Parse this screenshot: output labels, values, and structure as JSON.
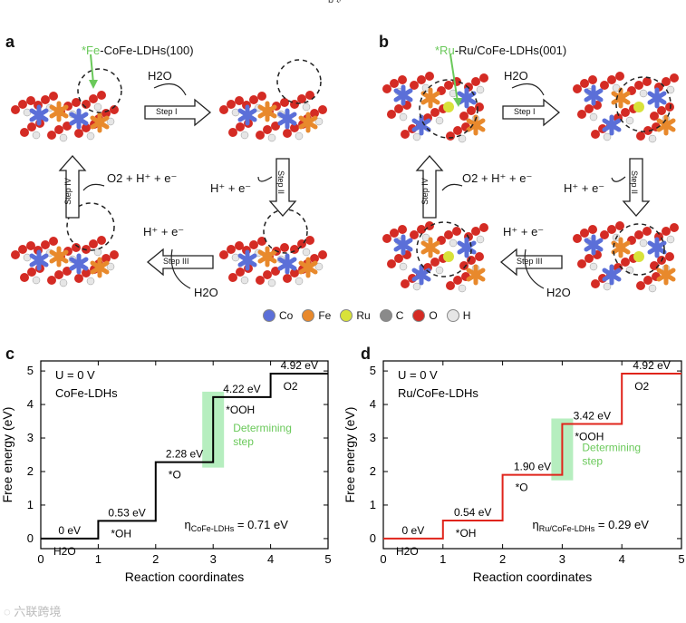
{
  "header_mark": "ɓ 𝔡",
  "watermark": "六联跨境",
  "colors": {
    "co": "#5b6fd8",
    "fe": "#e8892c",
    "ru": "#d8e23a",
    "c": "#8a8a8a",
    "o": "#d42b24",
    "h": "#e6e6e6",
    "highlight": "#b6eebf",
    "determining_text": "#6ac95a",
    "series_c": "#000000",
    "series_d": "#e0241b"
  },
  "panel_a": {
    "letter": "a",
    "label_prefix": "*Fe",
    "label_rest": "-CoFe-LDHs(100)",
    "h2o_1": "H2O",
    "step1": "Step I",
    "prod_2": "H⁺ + e⁻",
    "step2": "Step II",
    "prod_3": "H⁺ + e⁻",
    "h2o_3": "H2O",
    "step3": "Step III",
    "prod_4": "O2 + H⁺ + e⁻",
    "step4": "Step IV"
  },
  "panel_b": {
    "letter": "b",
    "label_prefix": "*Ru",
    "label_rest": "-Ru/CoFe-LDHs(001)",
    "h2o_1": "H2O",
    "step1": "Step I",
    "prod_2": "H⁺ + e⁻",
    "step2": "Step II",
    "prod_3": "H⁺ + e⁻",
    "h2o_3": "H2O",
    "step3": "Step III",
    "prod_4": "O2 + H⁺ + e⁻",
    "step4": "Step IV"
  },
  "legend": [
    {
      "label": "Co",
      "color": "#5b6fd8"
    },
    {
      "label": "Fe",
      "color": "#e8892c"
    },
    {
      "label": "Ru",
      "color": "#d8e23a"
    },
    {
      "label": "C",
      "color": "#8a8a8a"
    },
    {
      "label": "O",
      "color": "#d42b24"
    },
    {
      "label": "H",
      "color": "#e6e6e6"
    }
  ],
  "chart_data": [
    {
      "panel": "c",
      "type": "line",
      "style": "step",
      "series": [
        {
          "values": [
            0,
            0.53,
            2.28,
            4.22,
            4.92
          ]
        }
      ],
      "x_ranges": [
        [
          0,
          1
        ],
        [
          1,
          2
        ],
        [
          2,
          3
        ],
        [
          3,
          4
        ],
        [
          4,
          5
        ]
      ],
      "value_labels": [
        "0 eV",
        "0.53 eV",
        "2.28 eV",
        "4.22 eV",
        "4.92 eV"
      ],
      "species_labels": [
        "H2O",
        "*OH",
        "*O",
        "*OOH",
        "O2"
      ],
      "conditions": [
        "U = 0 V",
        "CoFe-LDHs"
      ],
      "determining_step": {
        "x": 3,
        "from": 2.28,
        "to": 4.22,
        "label_line1": "Determining",
        "label_line2": "step"
      },
      "overpotential": {
        "symbol": "η",
        "subscript": "CoFe-LDHs",
        "value": "= 0.71 eV"
      },
      "xlabel": "Reaction coordinates",
      "ylabel": "Free energy (eV)",
      "xlim": [
        0,
        5
      ],
      "ylim": [
        -0.3,
        5.3
      ],
      "xticks": [
        0,
        1,
        2,
        3,
        4,
        5
      ],
      "yticks": [
        0,
        1,
        2,
        3,
        4,
        5
      ],
      "grid": false
    },
    {
      "panel": "d",
      "type": "line",
      "style": "step",
      "series": [
        {
          "values": [
            0,
            0.54,
            1.9,
            3.42,
            4.92
          ]
        }
      ],
      "x_ranges": [
        [
          0,
          1
        ],
        [
          1,
          2
        ],
        [
          2,
          3
        ],
        [
          3,
          4
        ],
        [
          4,
          5
        ]
      ],
      "value_labels": [
        "0 eV",
        "0.54 eV",
        "1.90 eV",
        "3.42 eV",
        "4.92 eV"
      ],
      "species_labels": [
        "H2O",
        "*OH",
        "*O",
        "*OOH",
        "O2"
      ],
      "conditions": [
        "U = 0 V",
        "Ru/CoFe-LDHs"
      ],
      "determining_step": {
        "x": 3,
        "from": 1.9,
        "to": 3.42,
        "label_line1": "Determining",
        "label_line2": "step"
      },
      "overpotential": {
        "symbol": "η",
        "subscript": "Ru/CoFe-LDHs",
        "value": "= 0.29 eV"
      },
      "xlabel": "Reaction coordinates",
      "ylabel": "Free energy (eV)",
      "xlim": [
        0,
        5
      ],
      "ylim": [
        -0.3,
        5.3
      ],
      "xticks": [
        0,
        1,
        2,
        3,
        4,
        5
      ],
      "yticks": [
        0,
        1,
        2,
        3,
        4,
        5
      ],
      "grid": false
    }
  ]
}
